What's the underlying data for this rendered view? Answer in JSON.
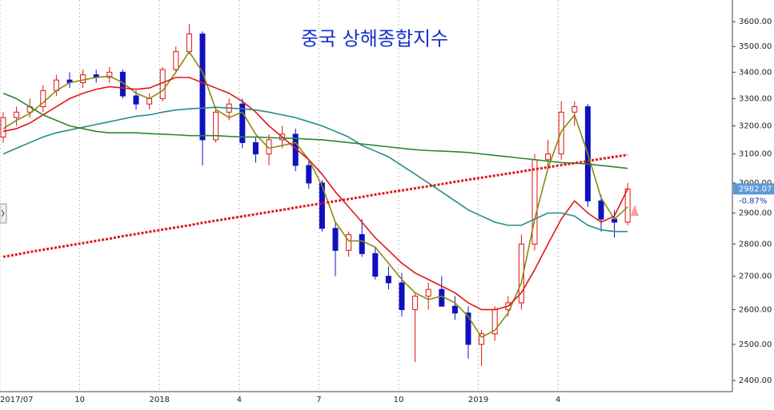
{
  "chart_data": {
    "type": "candlestick",
    "title": "중국 상해종합지수",
    "price_label": "2982.07",
    "change_label": "-0.87%",
    "log_scale": true,
    "ylim": [
      2370,
      3689
    ],
    "yticks": [
      {
        "value": 2400,
        "label": "2400.00"
      },
      {
        "value": 2500,
        "label": "2500.00"
      },
      {
        "value": 2600,
        "label": "2600.00"
      },
      {
        "value": 2700,
        "label": "2700.00"
      },
      {
        "value": 2800,
        "label": "2800.00"
      },
      {
        "value": 2900,
        "label": "2900.00"
      },
      {
        "value": 3000,
        "label": "3000.00"
      },
      {
        "value": 3100,
        "label": "3100.00"
      },
      {
        "value": 3200,
        "label": "3200.00"
      },
      {
        "value": 3300,
        "label": "3300.00"
      },
      {
        "value": 3400,
        "label": "3400.00"
      },
      {
        "value": 3500,
        "label": "3500.00"
      },
      {
        "value": 3600,
        "label": "3600.00"
      }
    ],
    "categories": [
      "2017/07",
      null,
      null,
      null,
      null,
      null,
      "10",
      null,
      null,
      null,
      null,
      null,
      "2018",
      null,
      null,
      null,
      null,
      null,
      "4",
      null,
      null,
      null,
      null,
      null,
      "7",
      null,
      null,
      null,
      null,
      null,
      "10",
      null,
      null,
      null,
      null,
      null,
      "2019",
      null,
      null,
      null,
      null,
      null,
      "4",
      null,
      null,
      null,
      null,
      null
    ],
    "up_color": "#e01010",
    "down_color": "#1010c0",
    "open": [
      3160,
      3230,
      3250,
      3270,
      3330,
      3370,
      3360,
      3390,
      3380,
      3400,
      3310,
      3280,
      3300,
      3410,
      3480,
      3550,
      3150,
      3250,
      3280,
      3140,
      3100,
      3150,
      3170,
      3060,
      3000,
      2850,
      2780,
      2830,
      2770,
      2700,
      2680,
      2600,
      2640,
      2660,
      2610,
      2590,
      2500,
      2530,
      2600,
      2620,
      2800,
      3080,
      3100,
      3250,
      3270,
      2940,
      2880,
      2870
    ],
    "high": [
      3250,
      3270,
      3300,
      3350,
      3390,
      3400,
      3410,
      3410,
      3420,
      3410,
      3330,
      3320,
      3420,
      3500,
      3590,
      3560,
      3270,
      3300,
      3300,
      3160,
      3170,
      3200,
      3190,
      3080,
      3010,
      2870,
      2840,
      2880,
      2790,
      2730,
      2710,
      2650,
      2680,
      2700,
      2640,
      2610,
      2540,
      2610,
      2640,
      2830,
      3100,
      3150,
      3290,
      3290,
      3280,
      2960,
      2910,
      3000
    ],
    "low": [
      3140,
      3200,
      3230,
      3250,
      3310,
      3340,
      3340,
      3360,
      3360,
      3300,
      3260,
      3260,
      3290,
      3400,
      3470,
      3060,
      3140,
      3220,
      3120,
      3070,
      3060,
      3120,
      3040,
      2980,
      2840,
      2700,
      2760,
      2760,
      2690,
      2660,
      2580,
      2450,
      2600,
      2610,
      2570,
      2460,
      2440,
      2510,
      2580,
      2600,
      2780,
      3050,
      3080,
      3200,
      2920,
      2840,
      2820,
      2860
    ],
    "close": [
      3230,
      3250,
      3270,
      3330,
      3370,
      3360,
      3390,
      3380,
      3400,
      3310,
      3280,
      3300,
      3410,
      3480,
      3550,
      3150,
      3250,
      3280,
      3140,
      3100,
      3150,
      3170,
      3060,
      3000,
      2850,
      2780,
      2830,
      2770,
      2700,
      2680,
      2600,
      2640,
      2660,
      2610,
      2590,
      2500,
      2530,
      2600,
      2620,
      2800,
      3080,
      3100,
      3250,
      3270,
      2940,
      2880,
      2870,
      2980
    ],
    "series": [
      {
        "color": "#8a8a10",
        "dotted": false,
        "values": [
          3190,
          3220,
          3245,
          3285,
          3330,
          3360,
          3370,
          3380,
          3385,
          3360,
          3320,
          3300,
          3330,
          3400,
          3480,
          3400,
          3260,
          3230,
          3250,
          3170,
          3120,
          3130,
          3140,
          3080,
          2990,
          2870,
          2810,
          2810,
          2790,
          2740,
          2690,
          2650,
          2630,
          2640,
          2620,
          2580,
          2520,
          2540,
          2590,
          2680,
          2880,
          3050,
          3180,
          3240,
          3100,
          2950,
          2880,
          2920
        ]
      },
      {
        "color": "#e01818",
        "dotted": false,
        "values": [
          3180,
          3190,
          3210,
          3240,
          3270,
          3300,
          3320,
          3335,
          3345,
          3340,
          3335,
          3340,
          3360,
          3380,
          3380,
          3360,
          3340,
          3320,
          3290,
          3250,
          3200,
          3160,
          3120,
          3080,
          3030,
          2970,
          2920,
          2870,
          2820,
          2780,
          2740,
          2710,
          2690,
          2670,
          2650,
          2620,
          2600,
          2600,
          2610,
          2650,
          2720,
          2800,
          2880,
          2940,
          2900,
          2870,
          2890,
          2980
        ]
      },
      {
        "color": "#2a8a8a",
        "dotted": false,
        "values": [
          3100,
          3120,
          3140,
          3160,
          3175,
          3185,
          3195,
          3205,
          3215,
          3225,
          3235,
          3240,
          3250,
          3258,
          3262,
          3265,
          3268,
          3265,
          3262,
          3258,
          3250,
          3240,
          3230,
          3215,
          3200,
          3180,
          3160,
          3130,
          3110,
          3090,
          3060,
          3030,
          3000,
          2970,
          2940,
          2910,
          2890,
          2870,
          2860,
          2860,
          2880,
          2900,
          2900,
          2890,
          2860,
          2845,
          2840,
          2840
        ]
      },
      {
        "color": "#2a8a2a",
        "dotted": false,
        "values": [
          3320,
          3300,
          3270,
          3240,
          3220,
          3200,
          3190,
          3180,
          3175,
          3175,
          3175,
          3172,
          3170,
          3168,
          3165,
          3165,
          3165,
          3162,
          3160,
          3160,
          3158,
          3156,
          3155,
          3152,
          3150,
          3145,
          3140,
          3135,
          3130,
          3125,
          3120,
          3115,
          3112,
          3110,
          3108,
          3105,
          3100,
          3095,
          3090,
          3085,
          3080,
          3075,
          3070,
          3068,
          3065,
          3060,
          3055,
          3050
        ]
      },
      {
        "color": "#e01818",
        "dotted": true,
        "values": [
          2760,
          2767,
          2775,
          2782,
          2789,
          2796,
          2803,
          2810,
          2817,
          2825,
          2832,
          2839,
          2846,
          2853,
          2860,
          2868,
          2875,
          2882,
          2889,
          2896,
          2903,
          2910,
          2918,
          2925,
          2932,
          2939,
          2946,
          2953,
          2961,
          2968,
          2975,
          2982,
          2989,
          2996,
          3004,
          3011,
          3018,
          3025,
          3032,
          3039,
          3047,
          3054,
          3061,
          3068,
          3075,
          3083,
          3090,
          3097
        ]
      }
    ]
  }
}
